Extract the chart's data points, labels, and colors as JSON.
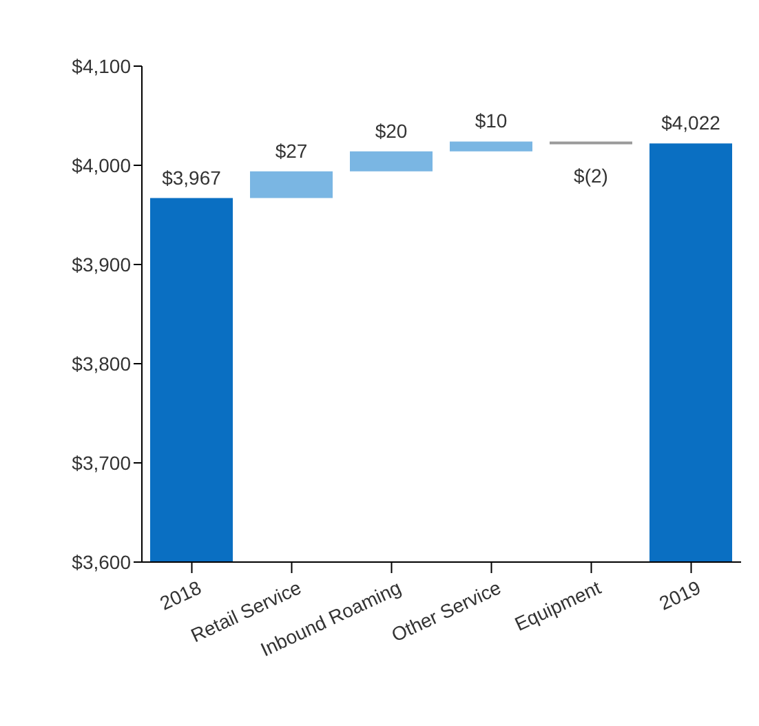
{
  "chart_data": {
    "type": "bar",
    "categories": [
      "2018",
      "Retail Service",
      "Inbound Roaming",
      "Other Service",
      "Equipment",
      "2019"
    ],
    "base": [
      3600,
      3967,
      3994,
      4014,
      4024,
      3600
    ],
    "values": [
      367,
      27,
      20,
      10,
      -2,
      422
    ],
    "colors": [
      "#0a6fc2",
      "#7ab6e3",
      "#7ab6e3",
      "#7ab6e3",
      "#9a9a9a",
      "#0a6fc2"
    ],
    "value_labels": [
      "$3,967",
      "$27",
      "$20",
      "$10",
      "$(2)",
      "$4,022"
    ],
    "ylim": [
      3600,
      4100
    ],
    "yticks": [
      {
        "value": 3600,
        "label": "$3,600"
      },
      {
        "value": 3700,
        "label": "$3,700"
      },
      {
        "value": 3800,
        "label": "$3,800"
      },
      {
        "value": 3900,
        "label": "$3,900"
      },
      {
        "value": 4000,
        "label": "$4,000"
      },
      {
        "value": 4100,
        "label": "$4,100"
      }
    ],
    "grid": false,
    "legend": false
  }
}
